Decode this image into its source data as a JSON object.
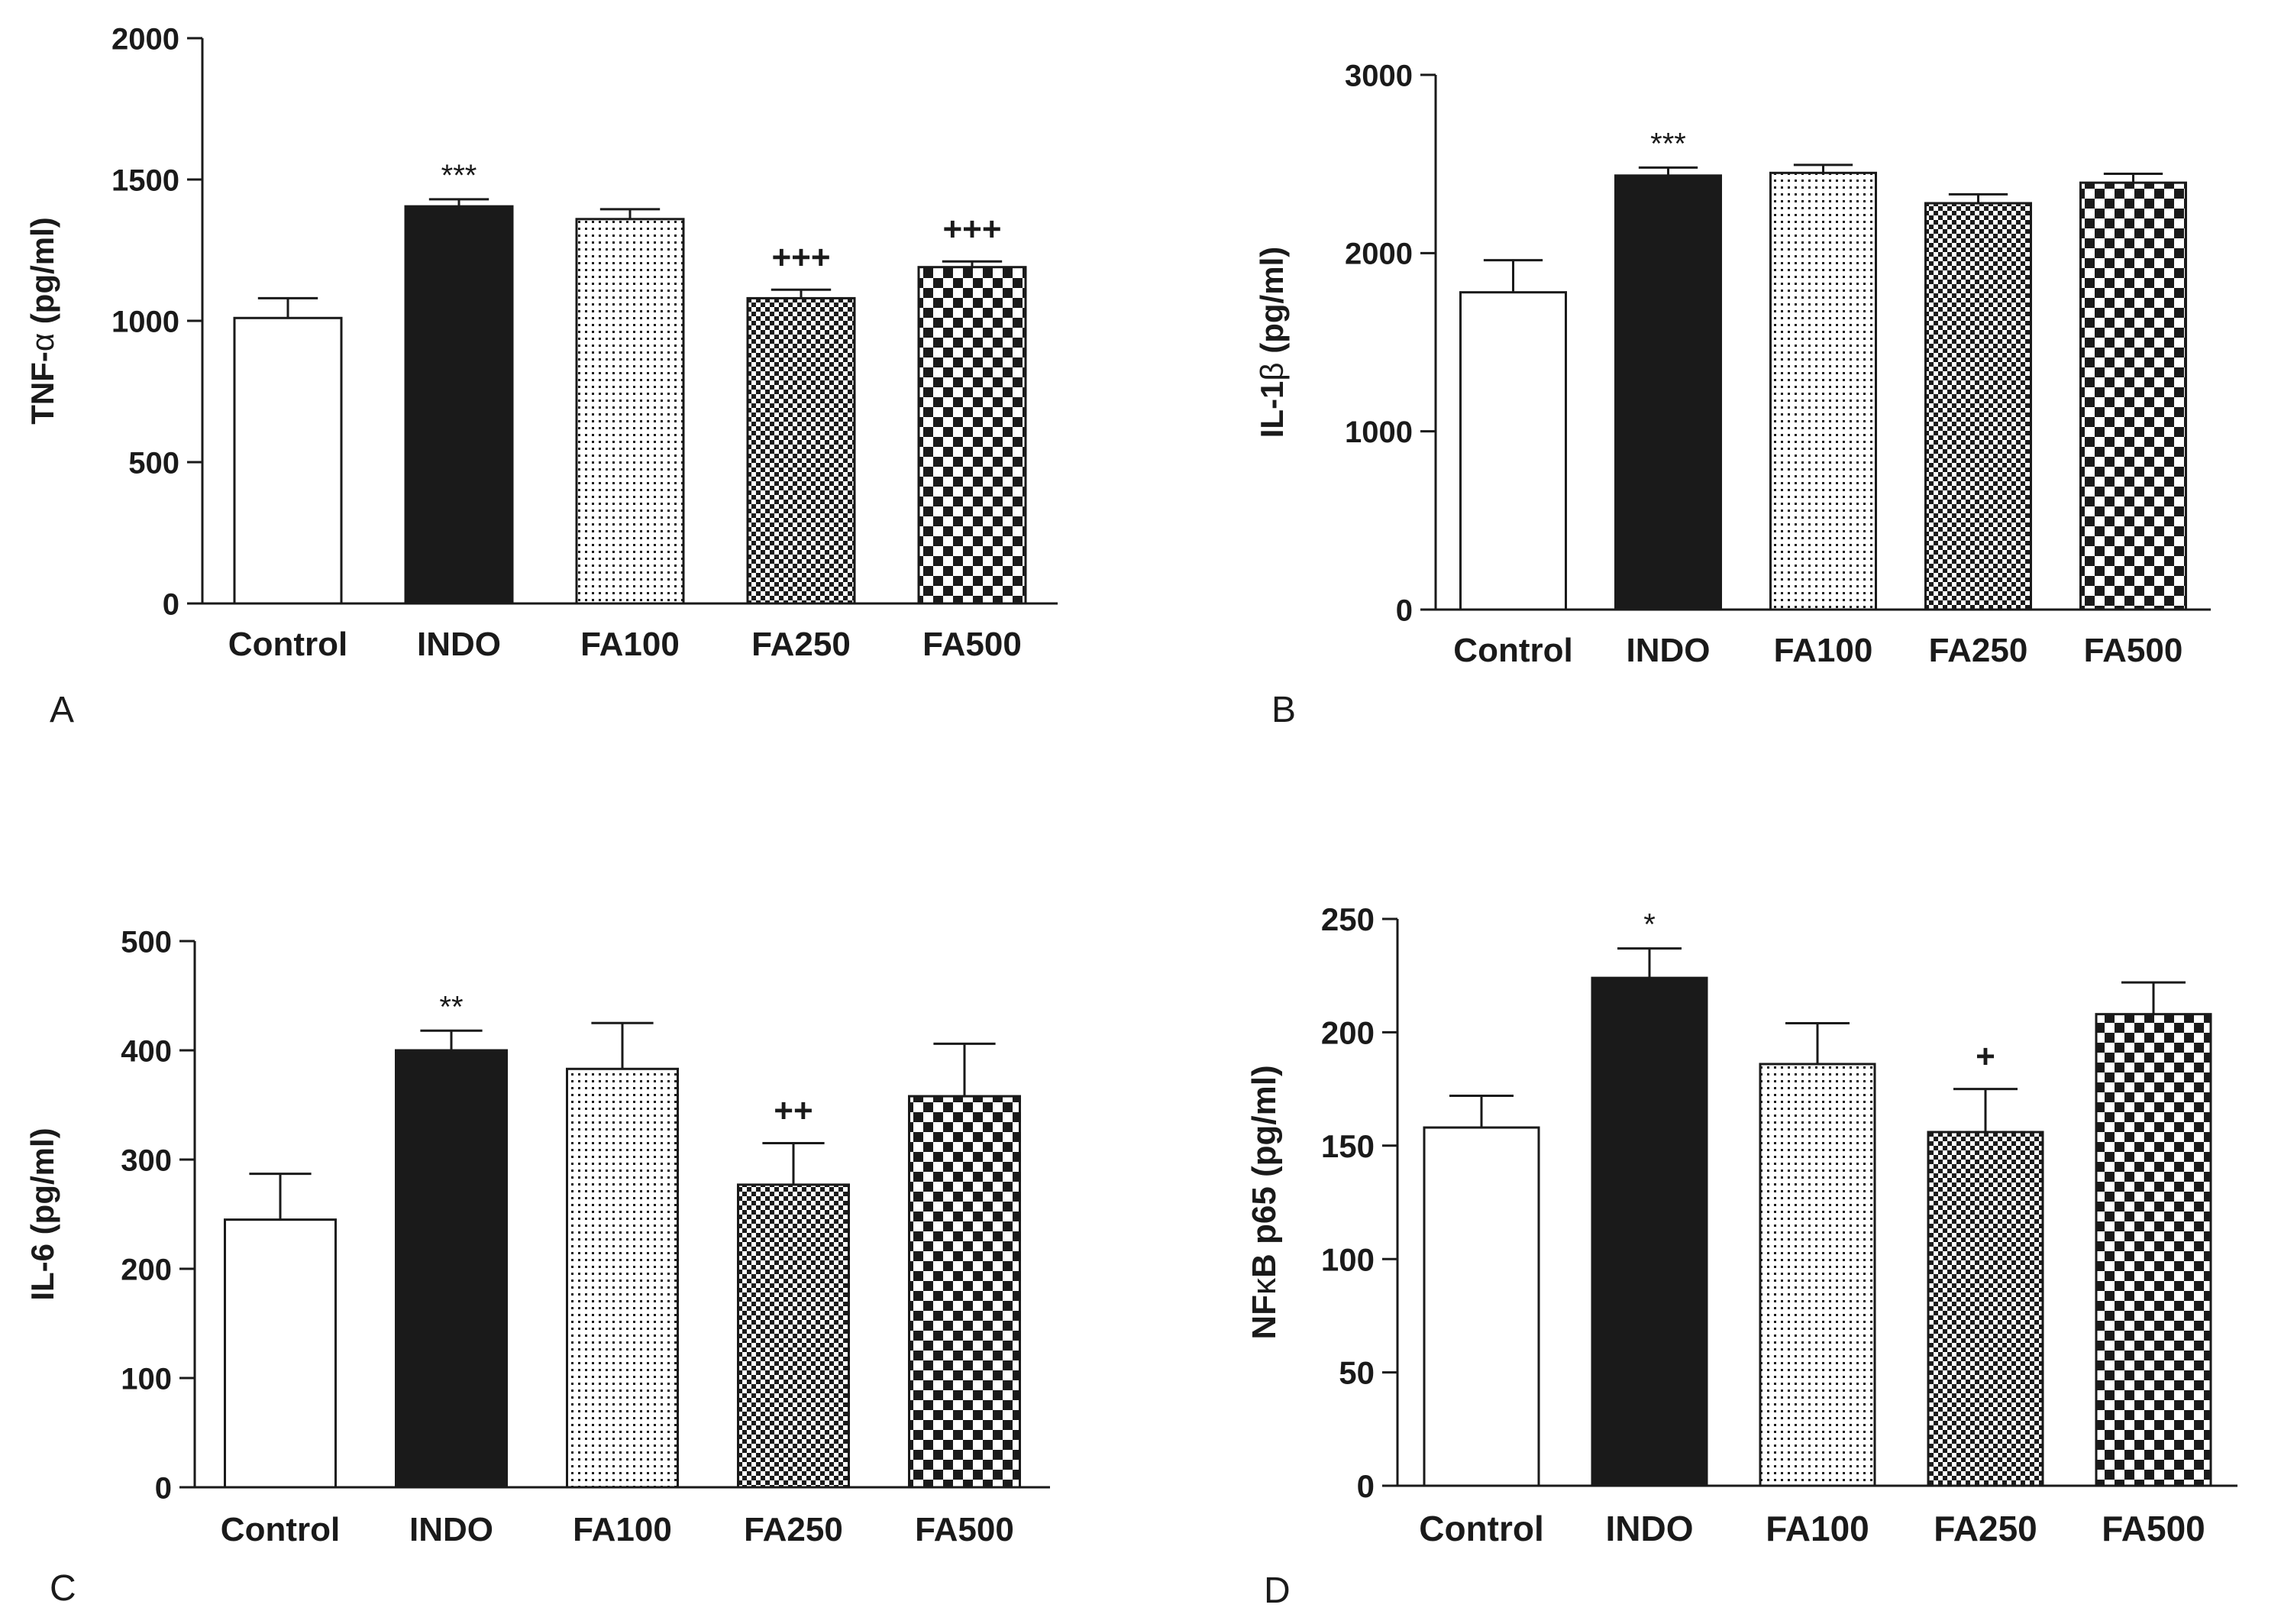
{
  "figure": {
    "groups": [
      "Control",
      "INDO",
      "FA100",
      "FA250",
      "FA500"
    ],
    "fills": [
      "white",
      "black",
      "dots",
      "fine-check",
      "check"
    ]
  },
  "colors": {
    "ink": "#1a1a1a",
    "background": "#ffffff"
  },
  "chart_data": [
    {
      "type": "bar",
      "panel_label": "A",
      "ylabel_parts": [
        "TNF-",
        "α",
        " (pg/ml)"
      ],
      "ylabel": "TNF-α (pg/ml)",
      "categories": [
        "Control",
        "INDO",
        "FA100",
        "FA250",
        "FA500"
      ],
      "values": [
        1010,
        1405,
        1360,
        1080,
        1190
      ],
      "errors": [
        70,
        25,
        35,
        30,
        20
      ],
      "annotations": [
        "",
        "***",
        "",
        "+++",
        "+++"
      ],
      "ylim": [
        0,
        2000
      ],
      "yticks": [
        0,
        500,
        1000,
        1500,
        2000
      ],
      "ytick_labels": [
        "0",
        "500",
        "1000",
        "1500",
        "2000"
      ]
    },
    {
      "type": "bar",
      "panel_label": "B",
      "ylabel_parts": [
        "IL-1",
        "β",
        " (pg/ml)"
      ],
      "ylabel": "IL-1β (pg/ml)",
      "categories": [
        "Control",
        "INDO",
        "FA100",
        "FA250",
        "FA500"
      ],
      "values": [
        1780,
        2435,
        2450,
        2280,
        2395
      ],
      "errors": [
        180,
        45,
        45,
        50,
        50
      ],
      "annotations": [
        "",
        "***",
        "",
        "",
        ""
      ],
      "ylim": [
        0,
        3000
      ],
      "yticks": [
        0,
        1000,
        2000,
        3000
      ],
      "ytick_labels": [
        "0",
        "1000",
        "2000",
        "3000"
      ]
    },
    {
      "type": "bar",
      "panel_label": "C",
      "ylabel_parts": [
        "IL-6 (pg/ml)"
      ],
      "ylabel": "IL-6 (pg/ml)",
      "categories": [
        "Control",
        "INDO",
        "FA100",
        "FA250",
        "FA500"
      ],
      "values": [
        245,
        400,
        383,
        277,
        358
      ],
      "errors": [
        42,
        18,
        42,
        38,
        48
      ],
      "annotations": [
        "",
        "**",
        "",
        "++",
        ""
      ],
      "ylim": [
        0,
        500
      ],
      "yticks": [
        0,
        100,
        200,
        300,
        400,
        500
      ],
      "ytick_labels": [
        "0",
        "100",
        "200",
        "300",
        "400",
        "500"
      ]
    },
    {
      "type": "bar",
      "panel_label": "D",
      "ylabel_parts": [
        "NF",
        "κ",
        "B p65 (pg/ml)"
      ],
      "ylabel": "NFκB p65 (pg/ml)",
      "categories": [
        "Control",
        "INDO",
        "FA100",
        "FA250",
        "FA500"
      ],
      "values": [
        158,
        224,
        186,
        156,
        208
      ],
      "errors": [
        14,
        13,
        18,
        19,
        14
      ],
      "annotations": [
        "",
        "*",
        "",
        "+",
        ""
      ],
      "ylim": [
        0,
        250
      ],
      "yticks": [
        0,
        50,
        100,
        150,
        200,
        250
      ],
      "ytick_labels": [
        "0",
        "50",
        "100",
        "150",
        "200",
        "250"
      ]
    }
  ]
}
